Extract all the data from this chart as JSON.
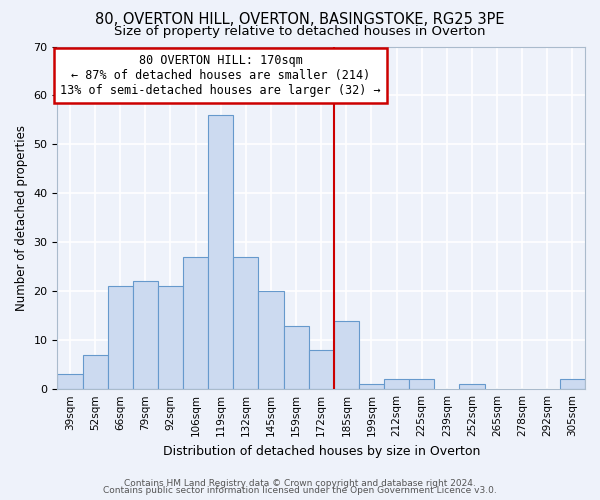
{
  "title": "80, OVERTON HILL, OVERTON, BASINGSTOKE, RG25 3PE",
  "subtitle": "Size of property relative to detached houses in Overton",
  "xlabel": "Distribution of detached houses by size in Overton",
  "ylabel": "Number of detached properties",
  "bar_labels": [
    "39sqm",
    "52sqm",
    "66sqm",
    "79sqm",
    "92sqm",
    "106sqm",
    "119sqm",
    "132sqm",
    "145sqm",
    "159sqm",
    "172sqm",
    "185sqm",
    "199sqm",
    "212sqm",
    "225sqm",
    "239sqm",
    "252sqm",
    "265sqm",
    "278sqm",
    "292sqm",
    "305sqm"
  ],
  "bar_values": [
    3,
    7,
    21,
    22,
    21,
    27,
    56,
    27,
    20,
    13,
    8,
    14,
    1,
    2,
    2,
    0,
    1,
    0,
    0,
    0,
    2
  ],
  "bar_color": "#ccdaf0",
  "bar_edge_color": "#6699cc",
  "vline_color": "#cc0000",
  "annotation_title": "80 OVERTON HILL: 170sqm",
  "annotation_line1": "← 87% of detached houses are smaller (214)",
  "annotation_line2": "13% of semi-detached houses are larger (32) →",
  "annotation_box_color": "#cc0000",
  "ylim": [
    0,
    70
  ],
  "yticks": [
    0,
    10,
    20,
    30,
    40,
    50,
    60,
    70
  ],
  "background_color": "#eef2fa",
  "grid_color": "#ffffff",
  "footer_line1": "Contains HM Land Registry data © Crown copyright and database right 2024.",
  "footer_line2": "Contains public sector information licensed under the Open Government Licence v3.0.",
  "title_fontsize": 10.5,
  "subtitle_fontsize": 9.5
}
